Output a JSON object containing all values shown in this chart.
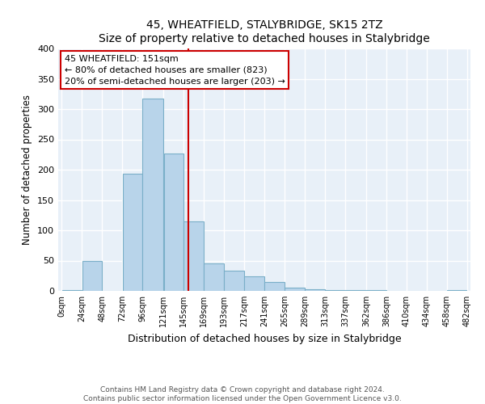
{
  "title": "45, WHEATFIELD, STALYBRIDGE, SK15 2TZ",
  "subtitle": "Size of property relative to detached houses in Stalybridge",
  "xlabel": "Distribution of detached houses by size in Stalybridge",
  "ylabel": "Number of detached properties",
  "bar_left_edges": [
    0,
    24,
    48,
    72,
    96,
    121,
    145,
    169,
    193,
    217,
    241,
    265,
    289,
    313,
    337,
    362,
    386,
    410,
    434,
    458
  ],
  "bar_widths": [
    24,
    24,
    24,
    24,
    25,
    24,
    24,
    24,
    24,
    24,
    24,
    24,
    24,
    24,
    25,
    24,
    24,
    24,
    24,
    24
  ],
  "bar_heights": [
    2,
    50,
    0,
    193,
    317,
    227,
    115,
    45,
    34,
    24,
    15,
    6,
    3,
    2,
    1,
    1,
    0,
    0,
    0,
    2
  ],
  "tick_labels": [
    "0sqm",
    "24sqm",
    "48sqm",
    "72sqm",
    "96sqm",
    "121sqm",
    "145sqm",
    "169sqm",
    "193sqm",
    "217sqm",
    "241sqm",
    "265sqm",
    "289sqm",
    "313sqm",
    "337sqm",
    "362sqm",
    "386sqm",
    "410sqm",
    "434sqm",
    "458sqm",
    "482sqm"
  ],
  "bar_color": "#b8d4ea",
  "bar_edgecolor": "#7aafc8",
  "vline_x": 151,
  "vline_color": "#cc0000",
  "annotation_title": "45 WHEATFIELD: 151sqm",
  "annotation_line1": "← 80% of detached houses are smaller (823)",
  "annotation_line2": "20% of semi-detached houses are larger (203) →",
  "box_edgecolor": "#cc0000",
  "ylim": [
    0,
    400
  ],
  "yticks": [
    0,
    50,
    100,
    150,
    200,
    250,
    300,
    350,
    400
  ],
  "footer1": "Contains HM Land Registry data © Crown copyright and database right 2024.",
  "footer2": "Contains public sector information licensed under the Open Government Licence v3.0.",
  "bg_color": "#e8f0f8",
  "grid_color": "#ffffff"
}
